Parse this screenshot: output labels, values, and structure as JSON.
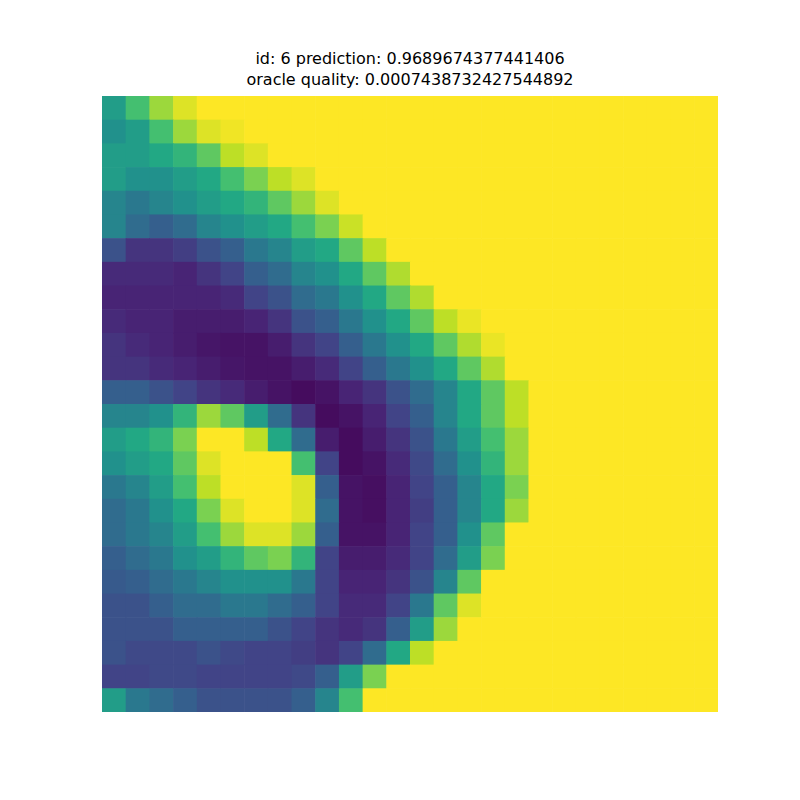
{
  "chart_data": {
    "type": "heatmap",
    "title": "id: 6 prediction: 0.9689674377441406",
    "subtitle": "oracle quality: 0.0007438732427544892",
    "color": "viridis",
    "zlim": [
      0,
      1
    ],
    "tick_labels": false,
    "cells": [
      [
        0.55,
        0.7,
        0.85,
        0.95,
        1,
        1,
        1,
        1,
        1,
        1,
        1,
        1,
        1,
        1,
        1,
        1,
        1,
        1,
        1,
        1,
        1,
        1,
        1,
        1,
        1,
        1
      ],
      [
        0.5,
        0.55,
        0.7,
        0.85,
        0.95,
        0.98,
        1,
        1,
        1,
        1,
        1,
        1,
        1,
        1,
        1,
        1,
        1,
        1,
        1,
        1,
        1,
        1,
        1,
        1,
        1,
        1
      ],
      [
        0.55,
        0.55,
        0.6,
        0.65,
        0.75,
        0.9,
        0.95,
        1,
        1,
        1,
        1,
        1,
        1,
        1,
        1,
        1,
        1,
        1,
        1,
        1,
        1,
        1,
        1,
        1,
        1,
        1
      ],
      [
        0.55,
        0.5,
        0.5,
        0.55,
        0.6,
        0.7,
        0.8,
        0.9,
        0.95,
        1,
        1,
        1,
        1,
        1,
        1,
        1,
        1,
        1,
        1,
        1,
        1,
        1,
        1,
        1,
        1,
        1
      ],
      [
        0.45,
        0.4,
        0.45,
        0.5,
        0.55,
        0.6,
        0.65,
        0.75,
        0.85,
        0.95,
        1,
        1,
        1,
        1,
        1,
        1,
        1,
        1,
        1,
        1,
        1,
        1,
        1,
        1,
        1,
        1
      ],
      [
        0.45,
        0.35,
        0.3,
        0.35,
        0.45,
        0.5,
        0.55,
        0.6,
        0.7,
        0.8,
        0.92,
        1,
        1,
        1,
        1,
        1,
        1,
        1,
        1,
        1,
        1,
        1,
        1,
        1,
        1,
        1
      ],
      [
        0.25,
        0.15,
        0.15,
        0.18,
        0.25,
        0.3,
        0.4,
        0.45,
        0.55,
        0.6,
        0.75,
        0.9,
        1,
        1,
        1,
        1,
        1,
        1,
        1,
        1,
        1,
        1,
        1,
        1,
        1,
        1
      ],
      [
        0.12,
        0.12,
        0.12,
        0.1,
        0.15,
        0.2,
        0.3,
        0.35,
        0.45,
        0.5,
        0.6,
        0.75,
        0.88,
        1,
        1,
        1,
        1,
        1,
        1,
        1,
        1,
        1,
        1,
        1,
        1,
        1
      ],
      [
        0.1,
        0.1,
        0.1,
        0.1,
        0.1,
        0.12,
        0.2,
        0.25,
        0.35,
        0.4,
        0.5,
        0.6,
        0.75,
        0.88,
        1,
        1,
        1,
        1,
        1,
        1,
        1,
        1,
        1,
        1,
        1,
        1
      ],
      [
        0.12,
        0.1,
        0.1,
        0.08,
        0.08,
        0.08,
        0.1,
        0.15,
        0.25,
        0.3,
        0.4,
        0.5,
        0.6,
        0.75,
        0.9,
        0.97,
        1,
        1,
        1,
        1,
        1,
        1,
        1,
        1,
        1,
        1
      ],
      [
        0.15,
        0.12,
        0.1,
        0.08,
        0.06,
        0.05,
        0.05,
        0.08,
        0.15,
        0.2,
        0.3,
        0.4,
        0.5,
        0.6,
        0.75,
        0.88,
        0.97,
        1,
        1,
        1,
        1,
        1,
        1,
        1,
        1,
        1
      ],
      [
        0.15,
        0.15,
        0.12,
        0.1,
        0.08,
        0.06,
        0.05,
        0.05,
        0.08,
        0.12,
        0.2,
        0.3,
        0.4,
        0.5,
        0.6,
        0.75,
        0.88,
        1,
        1,
        1,
        1,
        1,
        1,
        1,
        1,
        1
      ],
      [
        0.3,
        0.3,
        0.25,
        0.2,
        0.15,
        0.12,
        0.08,
        0.05,
        0.03,
        0.05,
        0.1,
        0.15,
        0.25,
        0.35,
        0.45,
        0.6,
        0.75,
        0.9,
        1,
        1,
        1,
        1,
        1,
        1,
        1,
        1
      ],
      [
        0.45,
        0.45,
        0.5,
        0.65,
        0.85,
        0.75,
        0.55,
        0.35,
        0.15,
        0.03,
        0.05,
        0.1,
        0.2,
        0.3,
        0.45,
        0.6,
        0.75,
        0.9,
        1,
        1,
        1,
        1,
        1,
        1,
        1,
        1
      ],
      [
        0.55,
        0.6,
        0.65,
        0.8,
        1,
        1,
        0.9,
        0.6,
        0.35,
        0.08,
        0.03,
        0.08,
        0.15,
        0.25,
        0.4,
        0.55,
        0.7,
        0.85,
        1,
        1,
        1,
        1,
        1,
        1,
        1,
        1
      ],
      [
        0.5,
        0.55,
        0.6,
        0.75,
        0.95,
        1,
        1,
        1,
        0.7,
        0.2,
        0.03,
        0.05,
        0.12,
        0.22,
        0.35,
        0.5,
        0.65,
        0.85,
        1,
        1,
        1,
        1,
        1,
        1,
        1,
        1
      ],
      [
        0.4,
        0.45,
        0.55,
        0.7,
        0.9,
        1,
        1,
        1,
        0.95,
        0.3,
        0.05,
        0.04,
        0.1,
        0.2,
        0.3,
        0.45,
        0.6,
        0.8,
        1,
        1,
        1,
        1,
        1,
        1,
        1,
        1
      ],
      [
        0.35,
        0.4,
        0.5,
        0.6,
        0.8,
        0.95,
        1,
        1,
        0.95,
        0.35,
        0.05,
        0.04,
        0.1,
        0.18,
        0.3,
        0.45,
        0.6,
        0.85,
        1,
        1,
        1,
        1,
        1,
        1,
        1,
        1
      ],
      [
        0.35,
        0.4,
        0.45,
        0.55,
        0.7,
        0.85,
        0.95,
        0.95,
        0.85,
        0.3,
        0.05,
        0.05,
        0.1,
        0.2,
        0.3,
        0.5,
        0.75,
        1,
        1,
        1,
        1,
        1,
        1,
        1,
        1,
        1
      ],
      [
        0.3,
        0.35,
        0.4,
        0.5,
        0.55,
        0.65,
        0.75,
        0.8,
        0.65,
        0.2,
        0.08,
        0.08,
        0.12,
        0.2,
        0.35,
        0.55,
        0.8,
        1,
        1,
        1,
        1,
        1,
        1,
        1,
        1,
        1
      ],
      [
        0.28,
        0.3,
        0.35,
        0.4,
        0.45,
        0.5,
        0.5,
        0.5,
        0.4,
        0.2,
        0.1,
        0.1,
        0.15,
        0.25,
        0.45,
        0.75,
        1,
        1,
        1,
        1,
        1,
        1,
        1,
        1,
        1,
        1
      ],
      [
        0.25,
        0.25,
        0.3,
        0.35,
        0.35,
        0.4,
        0.4,
        0.35,
        0.3,
        0.2,
        0.12,
        0.12,
        0.2,
        0.4,
        0.75,
        0.95,
        1,
        1,
        1,
        1,
        1,
        1,
        1,
        1,
        1,
        1
      ],
      [
        0.25,
        0.25,
        0.25,
        0.3,
        0.3,
        0.3,
        0.3,
        0.25,
        0.2,
        0.15,
        0.12,
        0.15,
        0.3,
        0.55,
        0.85,
        1,
        1,
        1,
        1,
        1,
        1,
        1,
        1,
        1,
        1,
        1
      ],
      [
        0.25,
        0.22,
        0.22,
        0.22,
        0.25,
        0.22,
        0.2,
        0.2,
        0.18,
        0.15,
        0.2,
        0.35,
        0.6,
        0.9,
        1,
        1,
        1,
        1,
        1,
        1,
        1,
        1,
        1,
        1,
        1,
        1
      ],
      [
        0.2,
        0.2,
        0.22,
        0.22,
        0.2,
        0.2,
        0.2,
        0.2,
        0.22,
        0.3,
        0.55,
        0.8,
        1,
        1,
        1,
        1,
        1,
        1,
        1,
        1,
        1,
        1,
        1,
        1,
        1,
        1
      ],
      [
        0.55,
        0.4,
        0.35,
        0.3,
        0.25,
        0.25,
        0.25,
        0.25,
        0.3,
        0.45,
        0.7,
        1,
        1,
        1,
        1,
        1,
        1,
        1,
        1,
        1,
        1,
        1,
        1,
        1,
        1,
        1
      ]
    ]
  }
}
